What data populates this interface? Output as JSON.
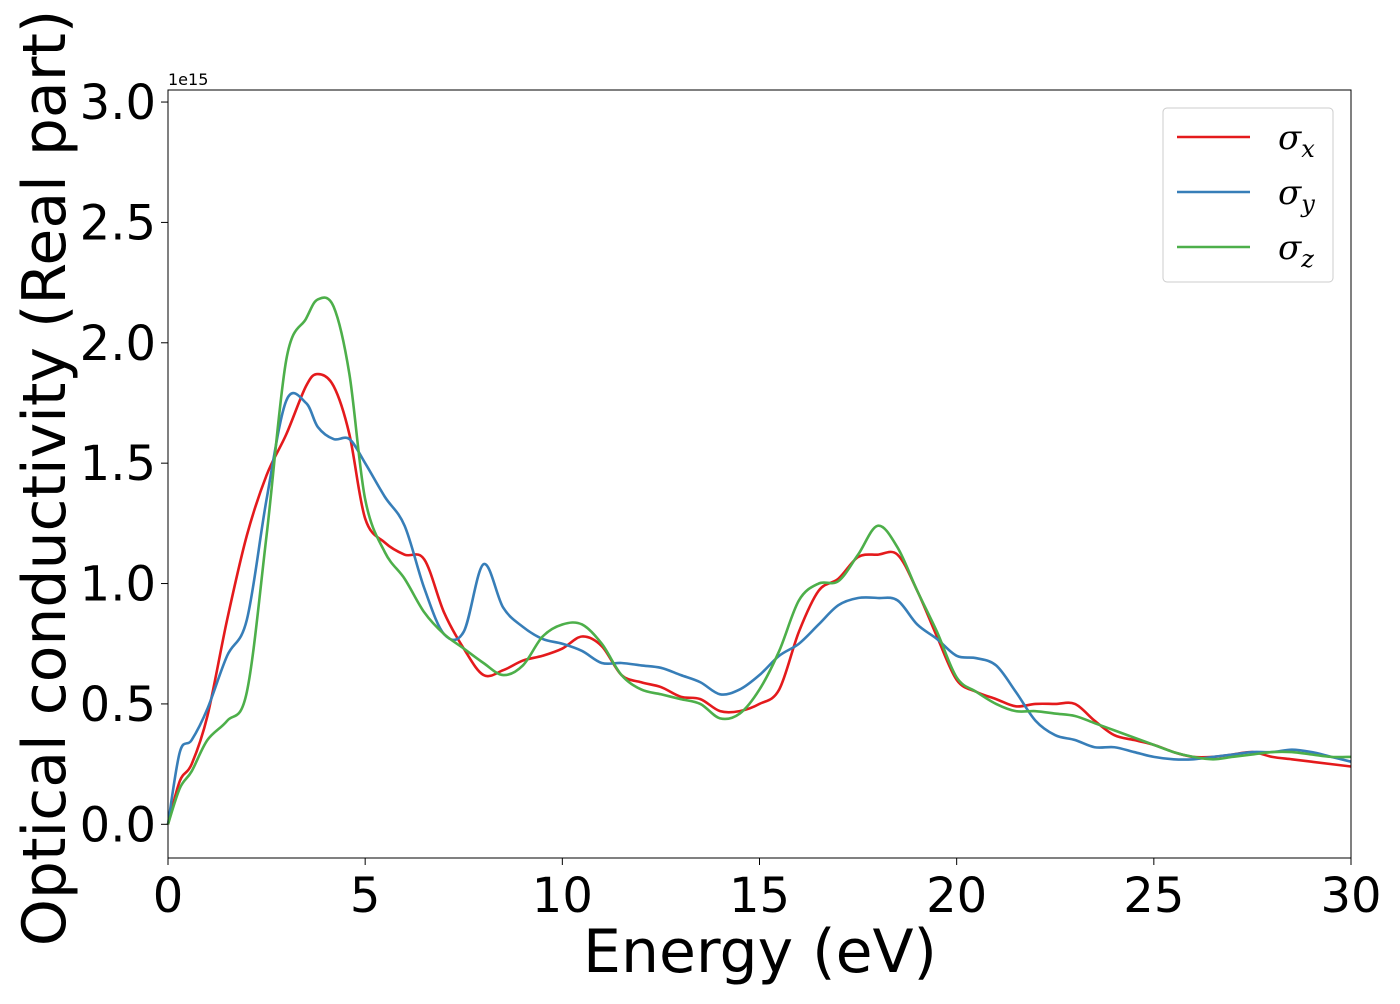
{
  "chart_data": {
    "type": "line",
    "title": "",
    "xlabel": "Energy (eV)",
    "ylabel": "Optical conductivity (Real part)",
    "y_offset_text": "1e15",
    "xlim": [
      0,
      30
    ],
    "ylim": [
      -0.14,
      3.05
    ],
    "x_ticks": [
      0,
      5,
      10,
      15,
      20,
      25,
      30
    ],
    "x_tick_labels": [
      "0",
      "5",
      "10",
      "15",
      "20",
      "25",
      "30"
    ],
    "y_ticks": [
      0.0,
      0.5,
      1.0,
      1.5,
      2.0,
      2.5,
      3.0
    ],
    "y_tick_labels": [
      "0.0",
      "0.5",
      "1.0",
      "1.5",
      "2.0",
      "2.5",
      "3.0"
    ],
    "grid": false,
    "legend_position": "top-right",
    "x": [
      0.0,
      0.3,
      0.6,
      1.0,
      1.5,
      2.0,
      2.5,
      3.0,
      3.5,
      3.8,
      4.2,
      4.6,
      5.0,
      5.5,
      6.0,
      6.5,
      7.0,
      7.5,
      8.0,
      8.5,
      9.0,
      9.5,
      10.0,
      10.5,
      11.0,
      11.5,
      12.0,
      12.5,
      13.0,
      13.5,
      14.0,
      14.5,
      15.0,
      15.5,
      16.0,
      16.5,
      17.0,
      17.5,
      18.0,
      18.5,
      19.0,
      19.5,
      20.0,
      20.5,
      21.0,
      21.5,
      22.0,
      22.5,
      23.0,
      23.5,
      24.0,
      24.5,
      25.0,
      25.5,
      26.0,
      26.5,
      27.0,
      27.5,
      28.0,
      28.5,
      29.0,
      29.5,
      30.0
    ],
    "series": [
      {
        "name": "σx",
        "label_base": "σ",
        "label_sub": "x",
        "color": "#e41a1c",
        "values": [
          0.0,
          0.18,
          0.25,
          0.45,
          0.85,
          1.2,
          1.45,
          1.62,
          1.82,
          1.87,
          1.82,
          1.62,
          1.27,
          1.17,
          1.12,
          1.1,
          0.88,
          0.73,
          0.62,
          0.64,
          0.68,
          0.7,
          0.73,
          0.78,
          0.74,
          0.62,
          0.59,
          0.57,
          0.53,
          0.52,
          0.47,
          0.47,
          0.5,
          0.56,
          0.8,
          0.97,
          1.02,
          1.11,
          1.12,
          1.12,
          0.97,
          0.78,
          0.6,
          0.55,
          0.52,
          0.49,
          0.5,
          0.5,
          0.5,
          0.43,
          0.37,
          0.35,
          0.33,
          0.3,
          0.28,
          0.28,
          0.29,
          0.3,
          0.28,
          0.27,
          0.26,
          0.25,
          0.24
        ]
      },
      {
        "name": "σy",
        "label_base": "σ",
        "label_sub": "y",
        "color": "#377eb8",
        "values": [
          0.0,
          0.3,
          0.35,
          0.48,
          0.7,
          0.85,
          1.35,
          1.76,
          1.75,
          1.65,
          1.6,
          1.6,
          1.5,
          1.36,
          1.24,
          0.98,
          0.79,
          0.8,
          1.08,
          0.9,
          0.82,
          0.77,
          0.75,
          0.72,
          0.67,
          0.67,
          0.66,
          0.65,
          0.62,
          0.59,
          0.54,
          0.56,
          0.62,
          0.7,
          0.75,
          0.83,
          0.91,
          0.94,
          0.94,
          0.93,
          0.83,
          0.77,
          0.7,
          0.69,
          0.66,
          0.55,
          0.43,
          0.37,
          0.35,
          0.32,
          0.32,
          0.3,
          0.28,
          0.27,
          0.27,
          0.28,
          0.29,
          0.3,
          0.3,
          0.31,
          0.3,
          0.28,
          0.26
        ]
      },
      {
        "name": "σz",
        "label_base": "σ",
        "label_sub": "z",
        "color": "#4daf4a",
        "values": [
          0.0,
          0.15,
          0.22,
          0.35,
          0.43,
          0.55,
          1.2,
          1.93,
          2.1,
          2.18,
          2.15,
          1.87,
          1.35,
          1.13,
          1.02,
          0.88,
          0.79,
          0.73,
          0.67,
          0.62,
          0.66,
          0.78,
          0.83,
          0.83,
          0.75,
          0.62,
          0.56,
          0.54,
          0.52,
          0.5,
          0.44,
          0.46,
          0.56,
          0.72,
          0.93,
          1.0,
          1.01,
          1.12,
          1.24,
          1.15,
          0.97,
          0.8,
          0.61,
          0.55,
          0.5,
          0.47,
          0.47,
          0.46,
          0.45,
          0.42,
          0.39,
          0.36,
          0.33,
          0.3,
          0.28,
          0.27,
          0.28,
          0.29,
          0.3,
          0.3,
          0.29,
          0.28,
          0.28
        ]
      }
    ]
  }
}
